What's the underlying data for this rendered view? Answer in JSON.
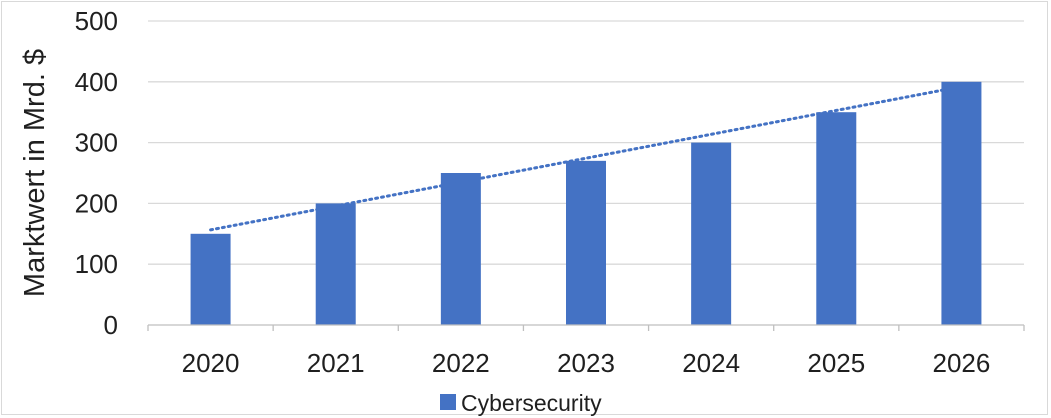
{
  "chart_data": {
    "type": "bar",
    "categories": [
      "2020",
      "2021",
      "2022",
      "2023",
      "2024",
      "2025",
      "2026"
    ],
    "series": [
      {
        "name": "Cybersecurity",
        "values": [
          150,
          200,
          250,
          270,
          300,
          350,
          400
        ]
      }
    ],
    "title": "",
    "xlabel": "",
    "ylabel": "Marktwert in Mrd. $",
    "ylim": [
      0,
      500
    ],
    "yticks": [
      "0",
      "100",
      "200",
      "300",
      "400",
      "500"
    ],
    "grid": true,
    "trendline": {
      "type": "linear",
      "style": "dotted"
    },
    "legend": "bottom",
    "colors": {
      "bar": "#4472c4",
      "trend": "#4472c4",
      "grid": "#d9d9d9",
      "axis": "#bfbfbf"
    }
  }
}
